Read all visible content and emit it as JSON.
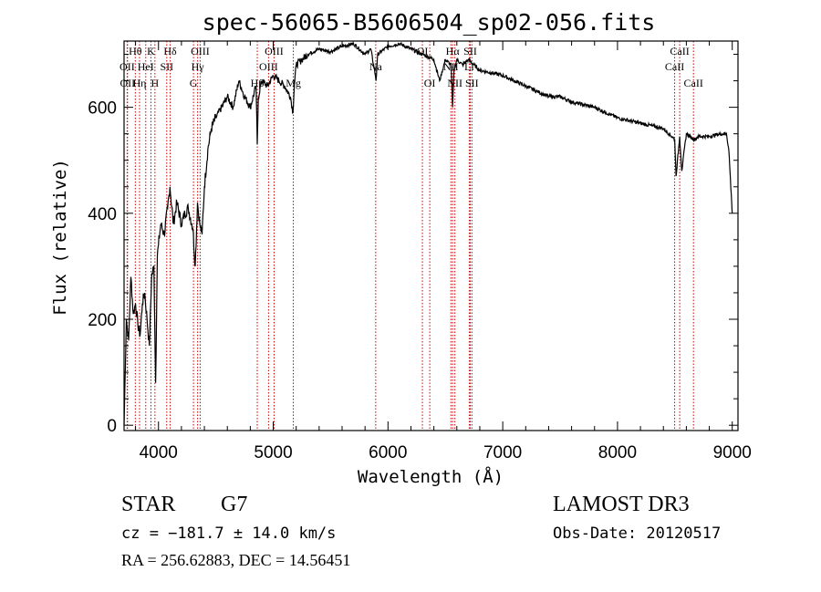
{
  "chart_data": {
    "type": "line",
    "title": "spec-56065-B5606504_sp02-056.fits",
    "xlabel": "Wavelength (Å)",
    "ylabel": "Flux (relative)",
    "xlim": [
      3700,
      9050
    ],
    "ylim": [
      -10,
      725
    ],
    "xticks": [
      4000,
      5000,
      6000,
      7000,
      8000,
      9000
    ],
    "yticks": [
      0,
      200,
      400,
      600
    ],
    "grid": false,
    "legend": "none",
    "series": [
      {
        "name": "flux",
        "color": "#000000",
        "x": [
          3700,
          3720,
          3740,
          3760,
          3780,
          3800,
          3820,
          3840,
          3860,
          3880,
          3900,
          3920,
          3940,
          3960,
          3975,
          3990,
          4000,
          4020,
          4050,
          4080,
          4100,
          4130,
          4160,
          4200,
          4230,
          4260,
          4290,
          4300,
          4320,
          4340,
          4360,
          4380,
          4400,
          4430,
          4460,
          4500,
          4550,
          4600,
          4650,
          4700,
          4750,
          4800,
          4850,
          4861,
          4870,
          4900,
          4950,
          5000,
          5050,
          5100,
          5150,
          5172,
          5183,
          5200,
          5250,
          5300,
          5400,
          5500,
          5600,
          5700,
          5800,
          5850,
          5890,
          5896,
          5910,
          6000,
          6100,
          6200,
          6300,
          6400,
          6450,
          6500,
          6550,
          6563,
          6575,
          6600,
          6650,
          6700,
          6800,
          6900,
          7000,
          7100,
          7200,
          7300,
          7400,
          7500,
          7600,
          7700,
          7800,
          7900,
          8000,
          8100,
          8200,
          8300,
          8400,
          8498,
          8510,
          8542,
          8560,
          8600,
          8662,
          8680,
          8700,
          8800,
          8900,
          8950,
          8970,
          8980,
          8995,
          9000
        ],
        "y": [
          0,
          200,
          160,
          280,
          210,
          230,
          190,
          170,
          230,
          250,
          200,
          150,
          280,
          300,
          80,
          320,
          340,
          380,
          360,
          410,
          450,
          380,
          420,
          380,
          400,
          410,
          380,
          370,
          300,
          420,
          380,
          360,
          450,
          520,
          560,
          580,
          600,
          620,
          600,
          650,
          620,
          600,
          640,
          530,
          620,
          650,
          640,
          660,
          650,
          640,
          620,
          590,
          640,
          680,
          690,
          700,
          710,
          705,
          715,
          720,
          700,
          710,
          660,
          650,
          700,
          715,
          720,
          710,
          700,
          690,
          650,
          690,
          680,
          600,
          670,
          690,
          680,
          690,
          670,
          665,
          660,
          650,
          640,
          630,
          620,
          620,
          610,
          605,
          600,
          590,
          580,
          575,
          570,
          565,
          560,
          540,
          470,
          545,
          480,
          550,
          540,
          540,
          545,
          545,
          550,
          550,
          520,
          480,
          420,
          400
        ]
      }
    ],
    "spectral_lines": [
      {
        "label": "Hθ",
        "wavelength": 3798,
        "row": 0
      },
      {
        "label": "OII",
        "wavelength": 3727,
        "row": 1
      },
      {
        "label": "OII",
        "wavelength": 3730,
        "row": 2
      },
      {
        "label": "Hη",
        "wavelength": 3835,
        "row": 2
      },
      {
        "label": "HeI",
        "wavelength": 3889,
        "row": 1
      },
      {
        "label": "K",
        "wavelength": 3934,
        "row": 0
      },
      {
        "label": "H",
        "wavelength": 3969,
        "row": 2
      },
      {
        "label": "SII",
        "wavelength": 4072,
        "row": 1
      },
      {
        "label": "Hδ",
        "wavelength": 4102,
        "row": 0
      },
      {
        "label": "OIII",
        "wavelength": 4363,
        "row": 0
      },
      {
        "label": "Hγ",
        "wavelength": 4341,
        "row": 1
      },
      {
        "label": "G",
        "wavelength": 4305,
        "row": 2
      },
      {
        "label": "Hβ",
        "wavelength": 4861,
        "row": 2
      },
      {
        "label": "OIII",
        "wavelength": 4959,
        "row": 1
      },
      {
        "label": "OIII",
        "wavelength": 5007,
        "row": 0
      },
      {
        "label": "Mg",
        "wavelength": 5175,
        "row": 2
      },
      {
        "label": "Na",
        "wavelength": 5893,
        "row": 1
      },
      {
        "label": "OI",
        "wavelength": 6300,
        "row": 0
      },
      {
        "label": "OI",
        "wavelength": 6364,
        "row": 2
      },
      {
        "label": "NII",
        "wavelength": 6548,
        "row": 1
      },
      {
        "label": "Hα",
        "wavelength": 6563,
        "row": 0
      },
      {
        "label": "NII",
        "wavelength": 6583,
        "row": 2
      },
      {
        "label": "SII",
        "wavelength": 6717,
        "row": 0
      },
      {
        "label": "Li",
        "wavelength": 6708,
        "row": 1
      },
      {
        "label": "SII",
        "wavelength": 6731,
        "row": 2
      },
      {
        "label": "CaII",
        "wavelength": 8498,
        "row": 1
      },
      {
        "label": "CaII",
        "wavelength": 8542,
        "row": 0
      },
      {
        "label": "CaII",
        "wavelength": 8662,
        "row": 2
      }
    ]
  },
  "info": {
    "class": "STAR",
    "subclass": "G7",
    "survey": "LAMOST DR3",
    "cz": "cz = −181.7 ± 14.0 km/s",
    "obs_date": "Obs-Date: 20120517",
    "coords": "RA = 256.62883, DEC =  14.56451"
  },
  "colors": {
    "line_marker": "#cc0000",
    "spectrum": "#000000"
  }
}
